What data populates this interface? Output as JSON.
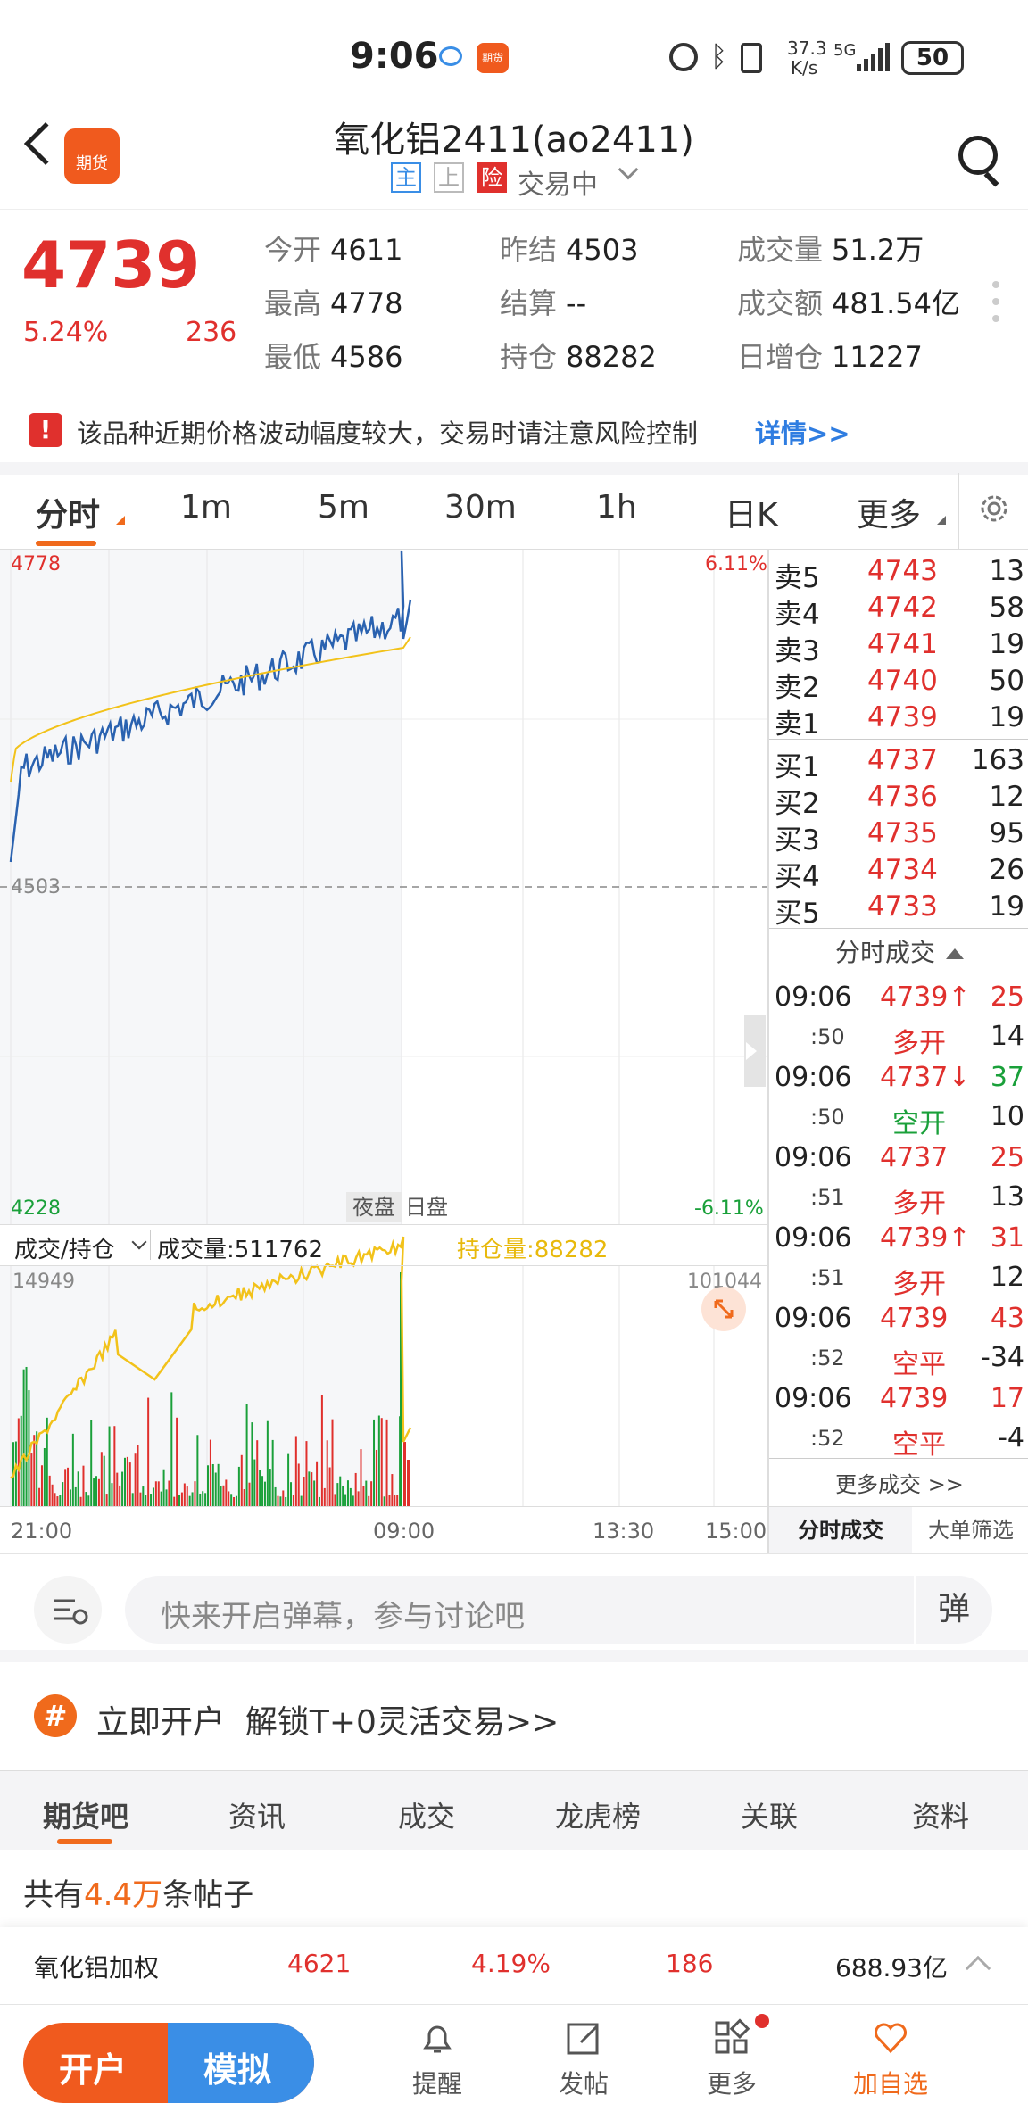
{
  "status_bar": {
    "time": "9:06",
    "speed_top": "37.3",
    "speed_bottom": "K/s",
    "network": "5G",
    "battery": "50"
  },
  "header": {
    "title": "氧化铝2411(ao2411)",
    "tag_main": "主",
    "tag_shang": "上",
    "tag_risk": "险",
    "trading_status": "交易中"
  },
  "quote": {
    "price": "4739",
    "change_pct": "5.24%",
    "change_abs": "236",
    "open_label": "今开",
    "open": "4611",
    "high_label": "最高",
    "high": "4778",
    "low_label": "最低",
    "low": "4586",
    "prev_settle_label": "昨结",
    "prev_settle": "4503",
    "settle_label": "结算",
    "settle": "--",
    "oi_label": "持仓",
    "oi": "88282",
    "volume_label": "成交量",
    "volume": "51.2万",
    "turnover_label": "成交额",
    "turnover": "481.54亿",
    "oi_inc_label": "日增仓",
    "oi_inc": "11227"
  },
  "alert": {
    "text": "该品种近期价格波动幅度较大，交易时请注意风险控制",
    "link": "详情>>"
  },
  "period_tabs": [
    "分时",
    "1m",
    "5m",
    "30m",
    "1h",
    "日K",
    "更多"
  ],
  "chart": {
    "price_top": "4778",
    "price_mid": "4503",
    "price_bottom": "4228",
    "pct_top": "6.11%",
    "pct_bottom": "-6.11%",
    "session_night": "夜盘",
    "session_day": "日盘",
    "sub_selector": "成交/持仓",
    "volume_text": "成交量:511762",
    "oi_text": "持仓量:88282",
    "sub_top_left": "14949",
    "sub_top_right": "101044",
    "time_labels": [
      "21:00",
      "09:00",
      "13:30",
      "15:00"
    ],
    "colors": {
      "price_line": "#2a62b0",
      "avg_line": "#f2c21a",
      "up": "#e0302d",
      "down": "#1aa03a"
    }
  },
  "order_book": {
    "asks": [
      {
        "label": "卖5",
        "price": "4743",
        "vol": "13"
      },
      {
        "label": "卖4",
        "price": "4742",
        "vol": "58"
      },
      {
        "label": "卖3",
        "price": "4741",
        "vol": "19"
      },
      {
        "label": "卖2",
        "price": "4740",
        "vol": "50"
      },
      {
        "label": "卖1",
        "price": "4739",
        "vol": "19"
      }
    ],
    "bids": [
      {
        "label": "买1",
        "price": "4737",
        "vol": "163"
      },
      {
        "label": "买2",
        "price": "4736",
        "vol": "12"
      },
      {
        "label": "买3",
        "price": "4735",
        "vol": "95"
      },
      {
        "label": "买4",
        "price": "4734",
        "vol": "26"
      },
      {
        "label": "买5",
        "price": "4733",
        "vol": "19"
      }
    ],
    "ticks_title": "分时成交",
    "ticks": [
      {
        "time": "09:06",
        "price": "4739↑",
        "pcolor": "red",
        "vol": "25",
        "vcolor": "red",
        "sec": ":50",
        "type": "多开",
        "tcolor": "red",
        "chg": "14",
        "ccolor": "dark"
      },
      {
        "time": "09:06",
        "price": "4737↓",
        "pcolor": "red",
        "vol": "37",
        "vcolor": "green",
        "sec": ":50",
        "type": "空开",
        "tcolor": "green",
        "chg": "10",
        "ccolor": "dark"
      },
      {
        "time": "09:06",
        "price": "4737",
        "pcolor": "red",
        "vol": "25",
        "vcolor": "red",
        "sec": ":51",
        "type": "多开",
        "tcolor": "red",
        "chg": "13",
        "ccolor": "dark"
      },
      {
        "time": "09:06",
        "price": "4739↑",
        "pcolor": "red",
        "vol": "31",
        "vcolor": "red",
        "sec": ":51",
        "type": "多开",
        "tcolor": "red",
        "chg": "12",
        "ccolor": "dark"
      },
      {
        "time": "09:06",
        "price": "4739",
        "pcolor": "red",
        "vol": "43",
        "vcolor": "red",
        "sec": ":52",
        "type": "空平",
        "tcolor": "red",
        "chg": "-34",
        "ccolor": "dark"
      },
      {
        "time": "09:06",
        "price": "4739",
        "pcolor": "red",
        "vol": "17",
        "vcolor": "red",
        "sec": ":52",
        "type": "空平",
        "tcolor": "red",
        "chg": "-4",
        "ccolor": "dark"
      }
    ],
    "more_ticks": "更多成交 >>",
    "tab_ticks": "分时成交",
    "tab_big": "大单筛选"
  },
  "comment": {
    "placeholder": "快来开启弹幕，参与讨论吧",
    "danmu_button": "弹"
  },
  "promo": {
    "icon": "#",
    "text": "立即开户  解锁T+0灵活交易>>"
  },
  "bottom_tabs": [
    "期货吧",
    "资讯",
    "成交",
    "龙虎榜",
    "关联",
    "资料"
  ],
  "posts": {
    "prefix": "共有",
    "count": "4.4万",
    "suffix": "条帖子"
  },
  "ticker": {
    "name": "氧化铝加权",
    "price": "4621",
    "pct": "4.19%",
    "chg": "186",
    "amount": "688.93亿"
  },
  "nav": {
    "open_account": "开户",
    "simulate": "模拟",
    "remind": "提醒",
    "post": "发帖",
    "more": "更多",
    "watchlist": "加自选"
  },
  "app_icon_label": "期货"
}
